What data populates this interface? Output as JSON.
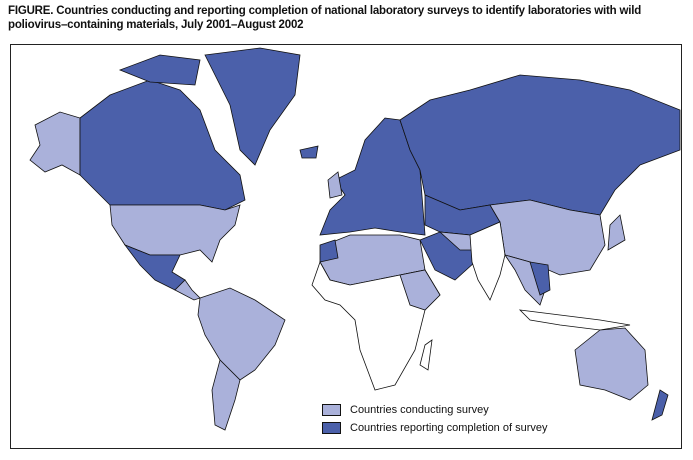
{
  "title": "FIGURE. Countries conducting and reporting completion of national laboratory surveys to identify laboratories with wild poliovirus–containing materials, July 2001–August 2002",
  "legend": [
    {
      "label": "Countries conducting survey",
      "color": "#aab1da"
    },
    {
      "label": "Countries reporting completion of survey",
      "color": "#4b60aa"
    }
  ],
  "colors": {
    "not_participating": "#ffffff",
    "outline": "#111111"
  }
}
